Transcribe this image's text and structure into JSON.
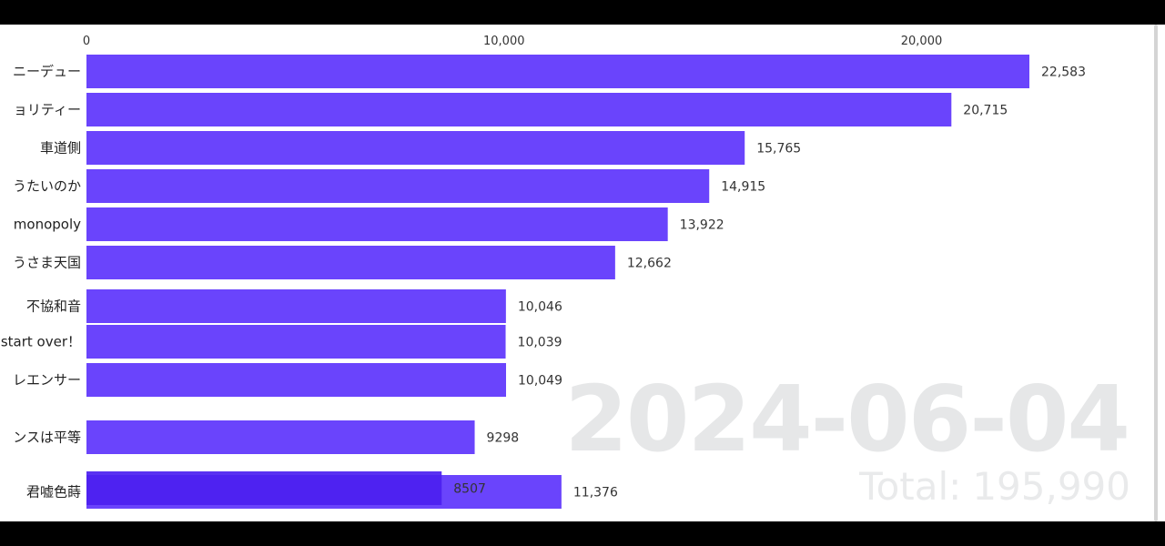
{
  "date": "2024-06-04",
  "total": {
    "label": "Total:",
    "value": "195,990"
  },
  "chart_data": {
    "type": "bar",
    "orientation": "horizontal",
    "xlim": [
      0,
      22583
    ],
    "x_ticks": [
      0,
      10000,
      20000
    ],
    "x_tick_labels": [
      "0",
      "10,000",
      "20,000"
    ],
    "bar_color": "#6a44fc",
    "bars": [
      {
        "label": "ニーデュー",
        "value": 22583,
        "value_label": "22,583"
      },
      {
        "label": "ョリティー",
        "value": 20715,
        "value_label": "20,715"
      },
      {
        "label": "車道側",
        "value": 15765,
        "value_label": "15,765"
      },
      {
        "label": "うたいのか",
        "value": 14915,
        "value_label": "14,915"
      },
      {
        "label": "monopoly",
        "value": 13922,
        "value_label": "13,922"
      },
      {
        "label": "うさま天国",
        "value": 12662,
        "value_label": "12,662"
      },
      {
        "label": "不協和音",
        "value": 10046,
        "value_label": "10,046"
      },
      {
        "label": "start over！",
        "value": 10039,
        "value_label": "10,039"
      },
      {
        "label": "レエンサー",
        "value": 10049,
        "value_label": "10,049"
      },
      {
        "label": "ンスは平等",
        "value": 9298,
        "value_label": "9298"
      },
      {
        "label": "君嘘色蒔",
        "value": 11376,
        "value_label": "11,376"
      },
      {
        "label": "",
        "value": 8507,
        "value_label": "8507"
      }
    ]
  }
}
